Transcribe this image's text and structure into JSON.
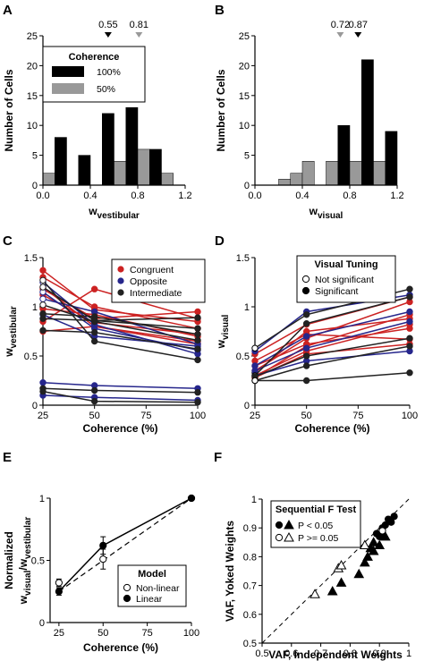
{
  "colors": {
    "black": "#000000",
    "gray": "#999999",
    "red": "#cc2222",
    "blue": "#26268c",
    "darkgray": "#222222"
  },
  "chart_data": [
    {
      "id": "A",
      "panel_label": "A",
      "type": "bar",
      "xlabel_main": "w",
      "xlabel_sub": "vestibular",
      "ylabel": "Number of Cells",
      "xlim": [
        0.0,
        1.2
      ],
      "ylim": [
        0,
        25
      ],
      "xticks": [
        "0.0",
        "0.4",
        "0.8",
        "1.2"
      ],
      "xtick_values": [
        0,
        0.4,
        0.8,
        1.2
      ],
      "yticks": [
        "0",
        "5",
        "10",
        "15",
        "20",
        "25"
      ],
      "ytick_values": [
        0,
        5,
        10,
        15,
        20,
        25
      ],
      "bin_width": 0.1,
      "series": [
        {
          "name": "100%",
          "color": "#000000",
          "x": [
            0.15,
            0.35,
            0.55,
            0.75,
            0.95
          ],
          "values": [
            8,
            5,
            12,
            13,
            6
          ]
        },
        {
          "name": "50%",
          "color": "#999999",
          "x": [
            0.05,
            0.65,
            0.85,
            1.05
          ],
          "values": [
            2,
            4,
            6,
            2
          ]
        }
      ],
      "markers": [
        {
          "value": 0.55,
          "label": "0.55",
          "color": "#000000"
        },
        {
          "value": 0.81,
          "label": "0.81",
          "color": "#999999"
        }
      ],
      "legend_title": "Coherence"
    },
    {
      "id": "B",
      "panel_label": "B",
      "type": "bar",
      "xlabel_main": "w",
      "xlabel_sub": "visual",
      "ylabel": "Number of Cells",
      "xlim": [
        0.0,
        1.2
      ],
      "ylim": [
        0,
        25
      ],
      "xticks": [
        "0.0",
        "0.4",
        "0.8",
        "1.2"
      ],
      "xtick_values": [
        0,
        0.4,
        0.8,
        1.2
      ],
      "yticks": [
        "0",
        "5",
        "10",
        "15",
        "20",
        "25"
      ],
      "ytick_values": [
        0,
        5,
        10,
        15,
        20,
        25
      ],
      "bin_width": 0.1,
      "series": [
        {
          "name": "100%",
          "color": "#000000",
          "x": [
            0.75,
            0.95,
            1.15
          ],
          "values": [
            10,
            21,
            9
          ]
        },
        {
          "name": "50%",
          "color": "#999999",
          "x": [
            0.25,
            0.35,
            0.45,
            0.65,
            0.85,
            1.05
          ],
          "values": [
            1,
            2,
            4,
            4,
            4,
            4
          ]
        }
      ],
      "markers": [
        {
          "value": 0.72,
          "label": "0.72",
          "color": "#999999"
        },
        {
          "value": 0.87,
          "label": "0.87",
          "color": "#000000"
        }
      ]
    },
    {
      "id": "C",
      "panel_label": "C",
      "type": "line",
      "xlabel": "Coherence (%)",
      "ylabel_main": "w",
      "ylabel_sub": "vestibular",
      "xlim": [
        25,
        100
      ],
      "ylim": [
        0,
        1.5
      ],
      "xticks": [
        "25",
        "50",
        "75",
        "100"
      ],
      "xtick_values": [
        25,
        50,
        75,
        100
      ],
      "yticks": [
        "0",
        "0.5",
        "1",
        "1.5"
      ],
      "ytick_values": [
        0,
        0.5,
        1,
        1.5
      ],
      "legend": [
        {
          "name": "Congruent",
          "color": "#cc2222"
        },
        {
          "name": "Opposite",
          "color": "#26268c"
        },
        {
          "name": "Intermediate",
          "color": "#222222"
        }
      ],
      "lines": [
        {
          "c": "red",
          "y": [
            1.37,
            0.97,
            0.85
          ]
        },
        {
          "c": "red",
          "y": [
            1.3,
            1.0,
            0.78
          ]
        },
        {
          "c": "red",
          "y": [
            1.2,
            0.8,
            0.65
          ]
        },
        {
          "c": "red",
          "y": [
            1.12,
            0.84,
            0.72
          ]
        },
        {
          "c": "red",
          "y": [
            0.98,
            0.92,
            0.7
          ]
        },
        {
          "c": "red",
          "y": [
            0.75,
            0.8,
            0.62
          ]
        },
        {
          "c": "red",
          "y": [
            1.18,
            0.88,
            0.95
          ]
        },
        {
          "c": "red",
          "y": [
            0.85,
            1.18,
            0.88
          ]
        },
        {
          "c": "blue",
          "y": [
            1.25,
            0.82,
            0.52
          ]
        },
        {
          "c": "blue",
          "y": [
            1.08,
            0.95,
            0.62
          ]
        },
        {
          "c": "blue",
          "y": [
            1.15,
            0.78,
            0.56
          ]
        },
        {
          "c": "blue",
          "y": [
            0.92,
            0.7,
            0.6
          ]
        },
        {
          "c": "blue",
          "y": [
            0.23,
            0.2,
            0.17
          ]
        },
        {
          "c": "blue",
          "y": [
            0.1,
            0.08,
            0.05
          ]
        },
        {
          "c": "dark",
          "y": [
            1.27,
            0.65,
            0.46
          ]
        },
        {
          "c": "dark",
          "y": [
            1.2,
            0.86,
            0.78
          ]
        },
        {
          "c": "dark",
          "y": [
            1.02,
            0.85,
            0.66
          ]
        },
        {
          "c": "dark",
          "y": [
            0.93,
            0.9,
            0.72
          ]
        },
        {
          "c": "dark",
          "y": [
            0.76,
            0.74,
            0.57
          ]
        },
        {
          "c": "dark",
          "y": [
            0.88,
            0.86,
            0.89
          ]
        },
        {
          "c": "dark",
          "y": [
            0.17,
            0.15,
            0.13
          ]
        },
        {
          "c": "dark",
          "y": [
            0.14,
            0.04,
            0.03
          ]
        }
      ],
      "x": [
        25,
        50,
        100
      ]
    },
    {
      "id": "D",
      "panel_label": "D",
      "type": "line",
      "xlabel": "Coherence (%)",
      "ylabel_main": "w",
      "ylabel_sub": "visual",
      "xlim": [
        25,
        100
      ],
      "ylim": [
        0,
        1.5
      ],
      "xticks": [
        "25",
        "50",
        "75",
        "100"
      ],
      "xtick_values": [
        25,
        50,
        75,
        100
      ],
      "yticks": [
        "0",
        "0.5",
        "1",
        "1.5"
      ],
      "ytick_values": [
        0,
        0.5,
        1,
        1.5
      ],
      "legend_title": "Visual Tuning",
      "legend": [
        {
          "name": "Not significant",
          "marker": "open"
        },
        {
          "name": "Significant",
          "marker": "filled"
        }
      ],
      "lines": [
        {
          "c": "red",
          "y": [
            0.52,
            0.82,
            1.1
          ],
          "s": 1
        },
        {
          "c": "red",
          "y": [
            0.35,
            0.68,
            1.05
          ],
          "s": 1
        },
        {
          "c": "red",
          "y": [
            0.3,
            0.55,
            0.82
          ],
          "s": 0
        },
        {
          "c": "red",
          "y": [
            0.28,
            0.6,
            0.92
          ],
          "s": 1
        },
        {
          "c": "red",
          "y": [
            0.33,
            0.75,
            0.88
          ],
          "s": 0
        },
        {
          "c": "red",
          "y": [
            0.4,
            0.62,
            0.78
          ],
          "s": 1
        },
        {
          "c": "red",
          "y": [
            0.45,
            0.72,
            0.67
          ],
          "s": 1
        },
        {
          "c": "red",
          "y": [
            0.28,
            0.52,
            0.62
          ],
          "s": 1
        },
        {
          "c": "blue",
          "y": [
            0.55,
            0.95,
            1.12
          ],
          "s": 1
        },
        {
          "c": "blue",
          "y": [
            0.4,
            0.7,
            0.95
          ],
          "s": 1
        },
        {
          "c": "blue",
          "y": [
            0.35,
            0.58,
            0.85
          ],
          "s": 1
        },
        {
          "c": "blue",
          "y": [
            0.3,
            0.45,
            0.55
          ],
          "s": 1
        },
        {
          "c": "dark",
          "y": [
            0.58,
            0.92,
            1.18
          ],
          "s": 0
        },
        {
          "c": "dark",
          "y": [
            0.3,
            0.83,
            1.1
          ],
          "s": 0
        },
        {
          "c": "dark",
          "y": [
            0.29,
            0.5,
            0.68
          ],
          "s": 1
        },
        {
          "c": "dark",
          "y": [
            0.25,
            0.4,
            0.6
          ],
          "s": 1
        },
        {
          "c": "dark",
          "y": [
            0.25,
            0.25,
            0.33
          ],
          "s": 0
        }
      ],
      "x": [
        25,
        50,
        100
      ]
    },
    {
      "id": "E",
      "panel_label": "E",
      "type": "line",
      "xlabel": "Coherence (%)",
      "ylabel_prefix": "Normalized",
      "ylabel_main1": "w",
      "ylabel_sub1": "visual",
      "ylabel_sep": "/w",
      "ylabel_sub2": "vestibular",
      "xlim": [
        20,
        100
      ],
      "ylim": [
        0,
        1
      ],
      "xticks": [
        "25",
        "50",
        "75",
        "100"
      ],
      "xtick_values": [
        25,
        50,
        75,
        100
      ],
      "yticks": [
        "0",
        "0.5",
        "1"
      ],
      "ytick_values": [
        0,
        0.5,
        1
      ],
      "legend_title": "Model",
      "series": [
        {
          "name": "Non-linear",
          "marker": "open",
          "x": [
            25,
            50,
            100
          ],
          "y": [
            0.32,
            0.51,
            1.0
          ],
          "err": [
            0.03,
            0.08,
            0.0
          ]
        },
        {
          "name": "Linear",
          "marker": "filled",
          "x": [
            25,
            50,
            100
          ],
          "y": [
            0.25,
            0.62,
            1.0
          ],
          "err": [
            0.03,
            0.07,
            0.0
          ]
        }
      ],
      "reference_line": {
        "x": [
          25,
          100
        ],
        "y": [
          0.25,
          1.0
        ]
      }
    },
    {
      "id": "F",
      "panel_label": "F",
      "type": "scatter",
      "xlabel": "VAF, Independent Weights",
      "ylabel": "VAF, Yoked Weights",
      "xlim": [
        0.5,
        1
      ],
      "ylim": [
        0.5,
        1
      ],
      "xticks": [
        "0.5",
        "0.6",
        "0.7",
        "0.8",
        "0.9",
        "1"
      ],
      "xtick_values": [
        0.5,
        0.6,
        0.7,
        0.8,
        0.9,
        1
      ],
      "yticks": [
        "0.5",
        "0.6",
        "0.7",
        "0.8",
        "0.9",
        "1"
      ],
      "ytick_values": [
        0.5,
        0.6,
        0.7,
        0.8,
        0.9,
        1
      ],
      "legend_title": "Sequential F Test",
      "legend": [
        {
          "name": "P <   0.05",
          "marker": "filled"
        },
        {
          "name": "P >= 0.05",
          "marker": "open"
        }
      ],
      "groups": [
        {
          "shape": "circle",
          "fill": true,
          "points": [
            [
              0.95,
              0.94
            ],
            [
              0.93,
              0.93
            ],
            [
              0.94,
              0.92
            ],
            [
              0.92,
              0.91
            ],
            [
              0.91,
              0.9
            ],
            [
              0.91,
              0.88
            ],
            [
              0.89,
              0.88
            ],
            [
              0.9,
              0.87
            ]
          ]
        },
        {
          "shape": "triangle",
          "fill": true,
          "points": [
            [
              0.74,
              0.68
            ],
            [
              0.77,
              0.71
            ],
            [
              0.83,
              0.74
            ],
            [
              0.85,
              0.78
            ],
            [
              0.86,
              0.8
            ],
            [
              0.88,
              0.82
            ],
            [
              0.87,
              0.83
            ],
            [
              0.88,
              0.85
            ],
            [
              0.9,
              0.84
            ],
            [
              0.92,
              0.87
            ]
          ]
        },
        {
          "shape": "circle",
          "fill": false,
          "points": [
            [
              0.91,
              0.89
            ]
          ]
        },
        {
          "shape": "triangle",
          "fill": false,
          "points": [
            [
              0.68,
              0.67
            ],
            [
              0.76,
              0.76
            ],
            [
              0.77,
              0.77
            ],
            [
              0.85,
              0.84
            ]
          ]
        }
      ],
      "reference_line": {
        "x": [
          0.5,
          1
        ],
        "y": [
          0.5,
          1
        ]
      }
    }
  ]
}
